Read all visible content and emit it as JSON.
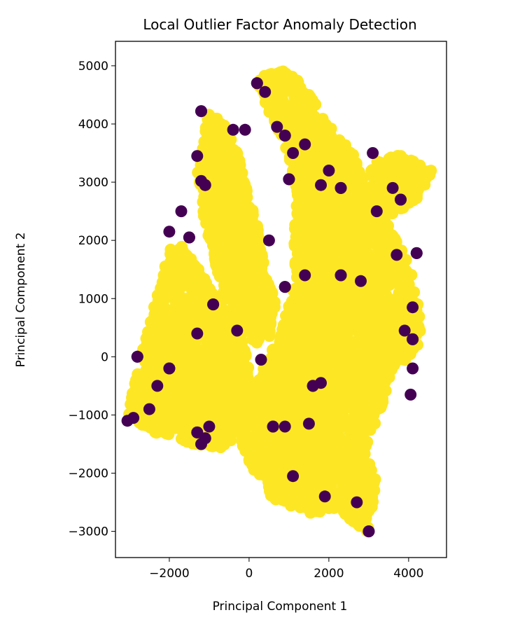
{
  "chart_data": {
    "type": "scatter",
    "title": "Local Outlier Factor Anomaly Detection",
    "xlabel": "Principal Component 1",
    "ylabel": "Principal Component 2",
    "xlim": [
      -3350,
      4950
    ],
    "ylim": [
      -3450,
      5420
    ],
    "xticks": [
      -2000,
      0,
      2000,
      4000
    ],
    "xtick_labels": [
      "−2000",
      "0",
      "2000",
      "4000"
    ],
    "yticks": [
      -3000,
      -2000,
      -1000,
      0,
      1000,
      2000,
      3000,
      4000,
      5000
    ],
    "ytick_labels": [
      "−3000",
      "−2000",
      "−1000",
      "0",
      "1000",
      "2000",
      "3000",
      "4000",
      "5000"
    ],
    "grid": false,
    "legend": false,
    "colors": {
      "inlier": "#fde725",
      "outlier": "#440154"
    },
    "series": [
      {
        "class": "inlier",
        "regions": [
          {
            "polygon": [
              [
                -3050,
                -1000
              ],
              [
                -2600,
                300
              ],
              [
                -2200,
                1300
              ],
              [
                -2000,
                1900
              ],
              [
                -1600,
                1900
              ],
              [
                -1000,
                1200
              ],
              [
                -400,
                600
              ],
              [
                0,
                0
              ],
              [
                0,
                -1000
              ],
              [
                -600,
                -1600
              ],
              [
                -1400,
                -1500
              ],
              [
                -2400,
                -1300
              ]
            ]
          },
          {
            "polygon": [
              [
                -1000,
                4250
              ],
              [
                -500,
                3900
              ],
              [
                -100,
                3100
              ],
              [
                300,
                2000
              ],
              [
                500,
                800
              ],
              [
                200,
                200
              ],
              [
                -300,
                400
              ],
              [
                -700,
                1200
              ],
              [
                -1100,
                2200
              ],
              [
                -1300,
                3200
              ]
            ]
          },
          {
            "polygon": [
              [
                200,
                4800
              ],
              [
                1100,
                4950
              ],
              [
                1500,
                4500
              ],
              [
                2000,
                4000
              ],
              [
                2700,
                3400
              ],
              [
                3300,
                2500
              ],
              [
                4000,
                1600
              ],
              [
                4300,
                800
              ],
              [
                4300,
                200
              ],
              [
                3600,
                -300
              ],
              [
                3300,
                -900
              ],
              [
                2900,
                -1600
              ],
              [
                3200,
                -2100
              ],
              [
                3000,
                -3050
              ],
              [
                2200,
                -2600
              ],
              [
                1500,
                -2700
              ],
              [
                500,
                -2400
              ],
              [
                0,
                -1900
              ],
              [
                -300,
                -1200
              ],
              [
                200,
                -400
              ],
              [
                800,
                400
              ],
              [
                1100,
                1600
              ],
              [
                1200,
                2900
              ],
              [
                800,
                3800
              ],
              [
                300,
                4500
              ]
            ]
          },
          {
            "polygon": [
              [
                3000,
                3300
              ],
              [
                3700,
                3500
              ],
              [
                4600,
                3200
              ],
              [
                4200,
                2700
              ],
              [
                3500,
                2400
              ],
              [
                3100,
                2700
              ]
            ]
          },
          {
            "polygon": [
              [
                -600,
                2300
              ],
              [
                200,
                1600
              ],
              [
                700,
                1000
              ],
              [
                500,
                300
              ],
              [
                -200,
                900
              ],
              [
                -700,
                1600
              ]
            ]
          },
          {
            "polygon": [
              [
                -2400,
                -200
              ],
              [
                -1600,
                300
              ],
              [
                -900,
                -200
              ],
              [
                -1200,
                -900
              ],
              [
                -2000,
                -1000
              ]
            ]
          },
          {
            "polygon": [
              [
                1500,
                3500
              ],
              [
                2600,
                2800
              ],
              [
                3000,
                1800
              ],
              [
                2500,
                600
              ],
              [
                1800,
                1400
              ],
              [
                1400,
                2600
              ]
            ]
          }
        ]
      },
      {
        "class": "outlier",
        "points": [
          [
            -1200,
            4220
          ],
          [
            -1300,
            3450
          ],
          [
            -1200,
            3020
          ],
          [
            -1100,
            2950
          ],
          [
            -1700,
            2500
          ],
          [
            -2000,
            2150
          ],
          [
            -1500,
            2050
          ],
          [
            -2900,
            -1050
          ],
          [
            -3050,
            -1100
          ],
          [
            -1300,
            -1300
          ],
          [
            -1200,
            -1500
          ],
          [
            -1000,
            -1200
          ],
          [
            -1100,
            -1400
          ],
          [
            -400,
            3900
          ],
          [
            -100,
            3900
          ],
          [
            200,
            4700
          ],
          [
            400,
            4550
          ],
          [
            700,
            3950
          ],
          [
            900,
            3800
          ],
          [
            1100,
            3500
          ],
          [
            1400,
            3650
          ],
          [
            1000,
            3050
          ],
          [
            1800,
            2950
          ],
          [
            2000,
            3200
          ],
          [
            2300,
            2900
          ],
          [
            3100,
            3500
          ],
          [
            3600,
            2900
          ],
          [
            3800,
            2700
          ],
          [
            3200,
            2500
          ],
          [
            3700,
            1750
          ],
          [
            4200,
            1780
          ],
          [
            4100,
            850
          ],
          [
            3900,
            450
          ],
          [
            4100,
            300
          ],
          [
            4100,
            -200
          ],
          [
            4050,
            -650
          ],
          [
            2300,
            1400
          ],
          [
            2800,
            1300
          ],
          [
            1400,
            1400
          ],
          [
            900,
            1200
          ],
          [
            -300,
            450
          ],
          [
            300,
            -50
          ],
          [
            1600,
            -500
          ],
          [
            1800,
            -450
          ],
          [
            900,
            -1200
          ],
          [
            600,
            -1200
          ],
          [
            1500,
            -1150
          ],
          [
            2700,
            -2500
          ],
          [
            3000,
            -3000
          ],
          [
            1900,
            -2400
          ],
          [
            1100,
            -2050
          ],
          [
            -2000,
            -200
          ],
          [
            -2300,
            -500
          ],
          [
            -2500,
            -900
          ],
          [
            -900,
            900
          ],
          [
            500,
            2000
          ],
          [
            -1300,
            400
          ],
          [
            -2800,
            0
          ]
        ]
      }
    ]
  }
}
